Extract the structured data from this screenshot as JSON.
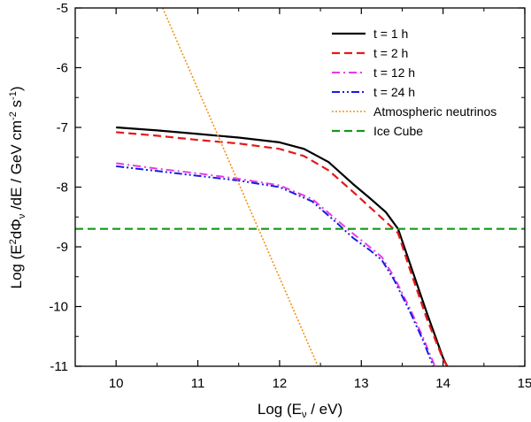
{
  "chart_data": {
    "type": "line",
    "xlabel": {
      "prefix": "Log (E",
      "sub": "ν",
      "suffix": " / eV)"
    },
    "ylabel": {
      "p1": "Log (E",
      "sup1": "2",
      "p2": "dΦ",
      "sub1": "ν",
      "p3": " /dE / GeV cm",
      "sup2": "-2",
      "p4": " s",
      "sup3": "-1",
      "p5": ")"
    },
    "xlim": [
      9.5,
      15
    ],
    "ylim": [
      -11,
      -5
    ],
    "xticks": [
      10,
      11,
      12,
      13,
      14,
      15
    ],
    "xtick_labels": [
      "10",
      "11",
      "12",
      "13",
      "14",
      "15"
    ],
    "yticks": [
      -11,
      -10,
      -9,
      -8,
      -7,
      -6,
      -5
    ],
    "ytick_labels": [
      "-11",
      "-10",
      "-9",
      "-8",
      "-7",
      "-6",
      "-5"
    ],
    "legend_position": "top-right",
    "series": [
      {
        "name": "t = 1 h",
        "color": "#000000",
        "dash": "solid",
        "x": [
          10,
          10.5,
          11,
          11.5,
          12,
          12.3,
          12.6,
          12.9,
          13.1,
          13.3,
          13.45,
          13.6,
          13.8,
          14.0,
          14.05
        ],
        "y": [
          -7.0,
          -7.05,
          -7.11,
          -7.17,
          -7.25,
          -7.36,
          -7.58,
          -7.95,
          -8.18,
          -8.42,
          -8.7,
          -9.3,
          -10.1,
          -10.86,
          -11.0
        ]
      },
      {
        "name": "t = 2 h",
        "color": "#e41a1c",
        "dash": "dash",
        "x": [
          10,
          10.5,
          11,
          11.5,
          12,
          12.3,
          12.6,
          12.9,
          13.1,
          13.3,
          13.45,
          13.6,
          13.8,
          14.0,
          14.05
        ],
        "y": [
          -7.08,
          -7.14,
          -7.21,
          -7.27,
          -7.36,
          -7.48,
          -7.72,
          -8.08,
          -8.33,
          -8.58,
          -8.77,
          -9.4,
          -10.2,
          -10.88,
          -11.0
        ]
      },
      {
        "name": "t = 12 h",
        "color": "#e53be5",
        "dash": "dashdot",
        "x": [
          10,
          10.5,
          11,
          11.5,
          12,
          12.4,
          12.7,
          12.9,
          13.1,
          13.25,
          13.4,
          13.6,
          13.75,
          13.9
        ],
        "y": [
          -7.6,
          -7.69,
          -7.77,
          -7.86,
          -7.97,
          -8.2,
          -8.55,
          -8.78,
          -9.0,
          -9.17,
          -9.5,
          -10.05,
          -10.5,
          -11.0
        ]
      },
      {
        "name": "t = 24 h",
        "color": "#1a1ae6",
        "dash": "dashdotdot",
        "x": [
          10,
          10.5,
          11,
          11.5,
          12,
          12.4,
          12.7,
          12.9,
          13.1,
          13.25,
          13.4,
          13.6,
          13.75,
          13.88
        ],
        "y": [
          -7.65,
          -7.73,
          -7.81,
          -7.89,
          -8.0,
          -8.24,
          -8.6,
          -8.85,
          -9.05,
          -9.22,
          -9.55,
          -10.1,
          -10.55,
          -11.0
        ]
      },
      {
        "name": "Atmospheric neutrinos",
        "color": "#f59215",
        "dash": "dot",
        "x": [
          10.57,
          12.47
        ],
        "y": [
          -5.0,
          -11.0
        ]
      },
      {
        "name": "Ice Cube",
        "color": "#129a18",
        "dash": "dash",
        "x": [
          9.5,
          15
        ],
        "y": [
          -8.7,
          -8.7
        ]
      }
    ]
  }
}
